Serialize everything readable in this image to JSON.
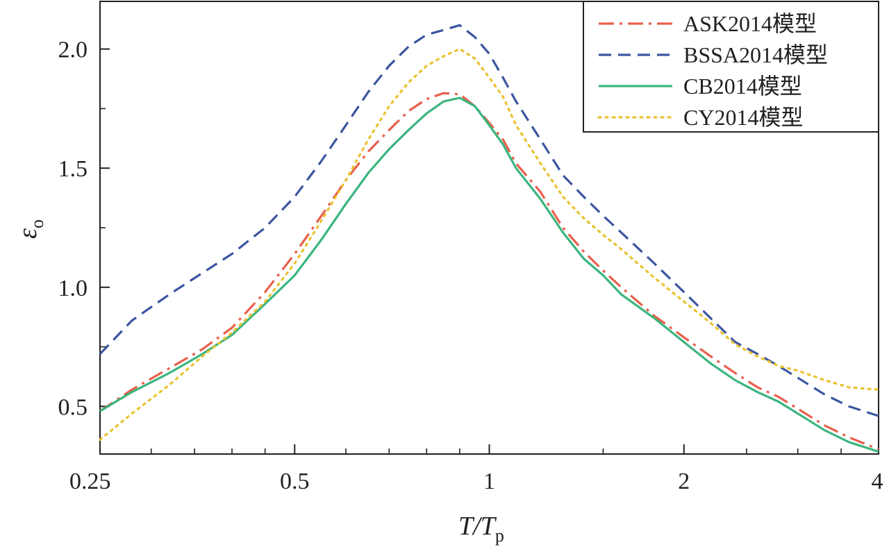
{
  "chart_data": {
    "type": "line",
    "xscale": "log",
    "xlim": [
      0.25,
      4
    ],
    "ylim": [
      0.3,
      2.2
    ],
    "xticks": [
      {
        "value": 0.25,
        "label": "0.25"
      },
      {
        "value": 0.5,
        "label": "0.5"
      },
      {
        "value": 1,
        "label": "1"
      },
      {
        "value": 2,
        "label": "2"
      },
      {
        "value": 4,
        "label": "4"
      }
    ],
    "xminor": [
      0.3,
      0.35,
      0.4,
      0.45,
      0.6,
      0.7,
      0.8,
      0.9,
      1.5,
      2.5,
      3,
      3.5
    ],
    "yticks": [
      {
        "value": 0.5,
        "label": "0.5"
      },
      {
        "value": 1.0,
        "label": "1.0"
      },
      {
        "value": 1.5,
        "label": "1.5"
      },
      {
        "value": 2.0,
        "label": "2.0"
      }
    ],
    "xlabel": "T/T",
    "xlabel_sub": "p",
    "ylabel": "ε",
    "ylabel_sub": "o",
    "legend_position": "top-right",
    "series": [
      {
        "name": "ASK2014模型",
        "color": "#e8604c",
        "dash": "dashdot",
        "points": [
          [
            0.25,
            0.48
          ],
          [
            0.28,
            0.57
          ],
          [
            0.32,
            0.66
          ],
          [
            0.36,
            0.74
          ],
          [
            0.4,
            0.83
          ],
          [
            0.45,
            0.98
          ],
          [
            0.5,
            1.14
          ],
          [
            0.55,
            1.3
          ],
          [
            0.6,
            1.45
          ],
          [
            0.65,
            1.57
          ],
          [
            0.7,
            1.66
          ],
          [
            0.75,
            1.74
          ],
          [
            0.8,
            1.79
          ],
          [
            0.85,
            1.815
          ],
          [
            0.9,
            1.81
          ],
          [
            0.95,
            1.76
          ],
          [
            1.0,
            1.69
          ],
          [
            1.05,
            1.62
          ],
          [
            1.1,
            1.52
          ],
          [
            1.2,
            1.4
          ],
          [
            1.3,
            1.25
          ],
          [
            1.4,
            1.15
          ],
          [
            1.5,
            1.07
          ],
          [
            1.6,
            1.0
          ],
          [
            1.8,
            0.88
          ],
          [
            2.0,
            0.79
          ],
          [
            2.2,
            0.71
          ],
          [
            2.4,
            0.64
          ],
          [
            2.6,
            0.58
          ],
          [
            2.8,
            0.54
          ],
          [
            3.0,
            0.49
          ],
          [
            3.3,
            0.42
          ],
          [
            3.6,
            0.37
          ],
          [
            4.0,
            0.32
          ]
        ]
      },
      {
        "name": "BSSA2014模型",
        "color": "#3b55a0",
        "dash": "dash",
        "points": [
          [
            0.25,
            0.72
          ],
          [
            0.28,
            0.86
          ],
          [
            0.32,
            0.97
          ],
          [
            0.36,
            1.06
          ],
          [
            0.4,
            1.14
          ],
          [
            0.45,
            1.25
          ],
          [
            0.5,
            1.38
          ],
          [
            0.55,
            1.53
          ],
          [
            0.6,
            1.68
          ],
          [
            0.65,
            1.82
          ],
          [
            0.7,
            1.93
          ],
          [
            0.75,
            2.01
          ],
          [
            0.8,
            2.06
          ],
          [
            0.85,
            2.08
          ],
          [
            0.9,
            2.1
          ],
          [
            0.95,
            2.05
          ],
          [
            1.0,
            1.98
          ],
          [
            1.05,
            1.88
          ],
          [
            1.1,
            1.78
          ],
          [
            1.2,
            1.62
          ],
          [
            1.3,
            1.47
          ],
          [
            1.4,
            1.38
          ],
          [
            1.5,
            1.3
          ],
          [
            1.6,
            1.23
          ],
          [
            1.8,
            1.1
          ],
          [
            2.0,
            0.98
          ],
          [
            2.2,
            0.87
          ],
          [
            2.4,
            0.77
          ],
          [
            2.6,
            0.72
          ],
          [
            2.8,
            0.67
          ],
          [
            3.0,
            0.62
          ],
          [
            3.3,
            0.55
          ],
          [
            3.6,
            0.5
          ],
          [
            4.0,
            0.46
          ]
        ]
      },
      {
        "name": "CB2014模型",
        "color": "#3ab57e",
        "dash": "solid",
        "points": [
          [
            0.25,
            0.48
          ],
          [
            0.28,
            0.56
          ],
          [
            0.32,
            0.64
          ],
          [
            0.36,
            0.72
          ],
          [
            0.4,
            0.8
          ],
          [
            0.45,
            0.93
          ],
          [
            0.5,
            1.05
          ],
          [
            0.55,
            1.2
          ],
          [
            0.6,
            1.35
          ],
          [
            0.65,
            1.48
          ],
          [
            0.7,
            1.58
          ],
          [
            0.75,
            1.66
          ],
          [
            0.8,
            1.73
          ],
          [
            0.85,
            1.78
          ],
          [
            0.9,
            1.795
          ],
          [
            0.95,
            1.76
          ],
          [
            1.0,
            1.68
          ],
          [
            1.05,
            1.6
          ],
          [
            1.1,
            1.5
          ],
          [
            1.2,
            1.37
          ],
          [
            1.3,
            1.23
          ],
          [
            1.4,
            1.12
          ],
          [
            1.5,
            1.05
          ],
          [
            1.6,
            0.97
          ],
          [
            1.8,
            0.87
          ],
          [
            2.0,
            0.77
          ],
          [
            2.2,
            0.68
          ],
          [
            2.4,
            0.61
          ],
          [
            2.6,
            0.56
          ],
          [
            2.8,
            0.52
          ],
          [
            3.0,
            0.47
          ],
          [
            3.3,
            0.4
          ],
          [
            3.6,
            0.35
          ],
          [
            4.0,
            0.31
          ]
        ]
      },
      {
        "name": "CY2014模型",
        "color": "#e9c22e",
        "dash": "dot",
        "points": [
          [
            0.25,
            0.36
          ],
          [
            0.28,
            0.47
          ],
          [
            0.32,
            0.59
          ],
          [
            0.36,
            0.71
          ],
          [
            0.4,
            0.81
          ],
          [
            0.45,
            0.94
          ],
          [
            0.5,
            1.1
          ],
          [
            0.55,
            1.28
          ],
          [
            0.6,
            1.45
          ],
          [
            0.65,
            1.62
          ],
          [
            0.7,
            1.76
          ],
          [
            0.75,
            1.86
          ],
          [
            0.8,
            1.93
          ],
          [
            0.85,
            1.97
          ],
          [
            0.9,
            2.0
          ],
          [
            0.95,
            1.96
          ],
          [
            1.0,
            1.88
          ],
          [
            1.05,
            1.8
          ],
          [
            1.1,
            1.68
          ],
          [
            1.2,
            1.52
          ],
          [
            1.3,
            1.38
          ],
          [
            1.4,
            1.29
          ],
          [
            1.5,
            1.22
          ],
          [
            1.6,
            1.16
          ],
          [
            1.8,
            1.04
          ],
          [
            2.0,
            0.94
          ],
          [
            2.2,
            0.85
          ],
          [
            2.4,
            0.76
          ],
          [
            2.6,
            0.71
          ],
          [
            2.8,
            0.67
          ],
          [
            3.0,
            0.65
          ],
          [
            3.3,
            0.61
          ],
          [
            3.6,
            0.58
          ],
          [
            4.0,
            0.57
          ]
        ]
      }
    ]
  }
}
